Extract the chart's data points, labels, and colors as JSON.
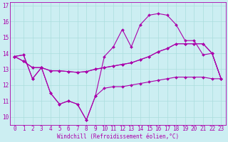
{
  "xlabel": "Windchill (Refroidissement éolien,°C)",
  "xlim": [
    -0.5,
    23.5
  ],
  "ylim": [
    9.5,
    17.2
  ],
  "yticks": [
    10,
    11,
    12,
    13,
    14,
    15,
    16,
    17
  ],
  "xticks": [
    0,
    1,
    2,
    3,
    4,
    5,
    6,
    7,
    8,
    9,
    10,
    11,
    12,
    13,
    14,
    15,
    16,
    17,
    18,
    19,
    20,
    21,
    22,
    23
  ],
  "bg_color": "#cceef2",
  "grid_color": "#aadddd",
  "line_color": "#aa00aa",
  "s1": [
    13.8,
    13.9,
    12.4,
    13.1,
    11.5,
    10.8,
    11.0,
    10.8,
    9.8,
    11.3,
    11.8,
    11.9,
    11.9,
    12.0,
    12.1,
    12.2,
    12.3,
    12.4,
    12.5,
    12.5,
    12.5,
    12.5,
    12.4,
    12.4
  ],
  "s2": [
    13.8,
    13.9,
    12.4,
    13.1,
    11.5,
    10.8,
    11.0,
    10.8,
    9.8,
    11.3,
    13.8,
    14.4,
    15.5,
    14.4,
    15.8,
    16.4,
    16.5,
    16.4,
    15.8,
    14.8,
    14.8,
    13.9,
    14.0,
    12.4
  ],
  "s3": [
    13.8,
    13.5,
    13.1,
    13.1,
    12.9,
    12.9,
    12.85,
    12.8,
    12.85,
    13.0,
    13.1,
    13.2,
    13.3,
    13.4,
    13.6,
    13.8,
    14.1,
    14.3,
    14.6,
    14.6,
    14.6,
    14.6,
    14.0,
    12.4
  ],
  "s4": [
    13.8,
    13.5,
    13.1,
    13.1,
    12.9,
    12.9,
    12.85,
    12.8,
    12.85,
    13.0,
    13.1,
    13.2,
    13.3,
    13.4,
    13.6,
    13.8,
    14.1,
    14.3,
    14.6,
    14.6,
    14.6,
    14.6,
    14.0,
    12.4
  ],
  "marker_size": 2.0,
  "line_width": 0.8,
  "tick_fontsize": 5.5,
  "xlabel_fontsize": 5.5
}
